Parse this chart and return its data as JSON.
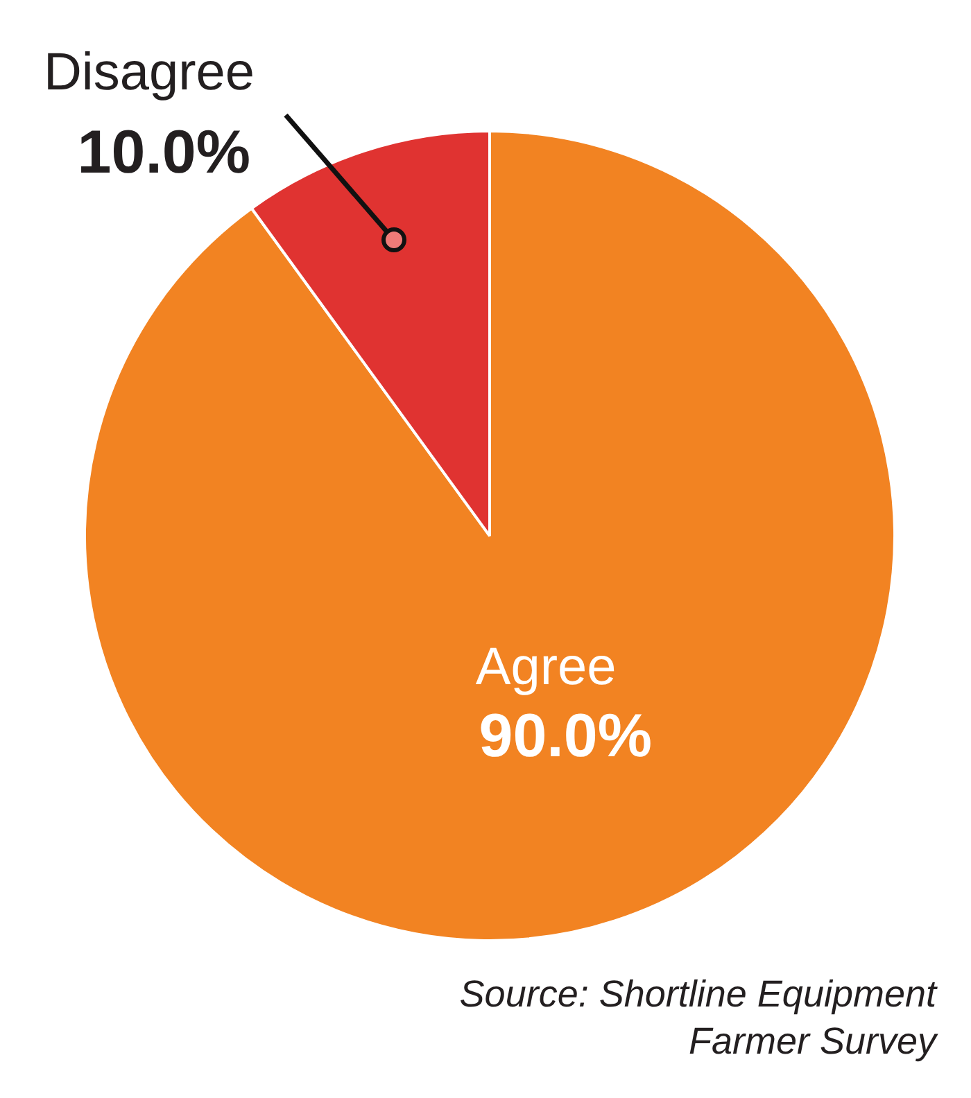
{
  "chart_data": {
    "type": "pie",
    "categories": [
      "Agree",
      "Disagree"
    ],
    "values": [
      90.0,
      10.0
    ],
    "colors": [
      "#f28322",
      "#e03331"
    ],
    "value_labels": [
      "90.0%",
      "10.0%"
    ],
    "annotations": [
      "Source: Shortline Equipment Farmer Survey"
    ]
  }
}
